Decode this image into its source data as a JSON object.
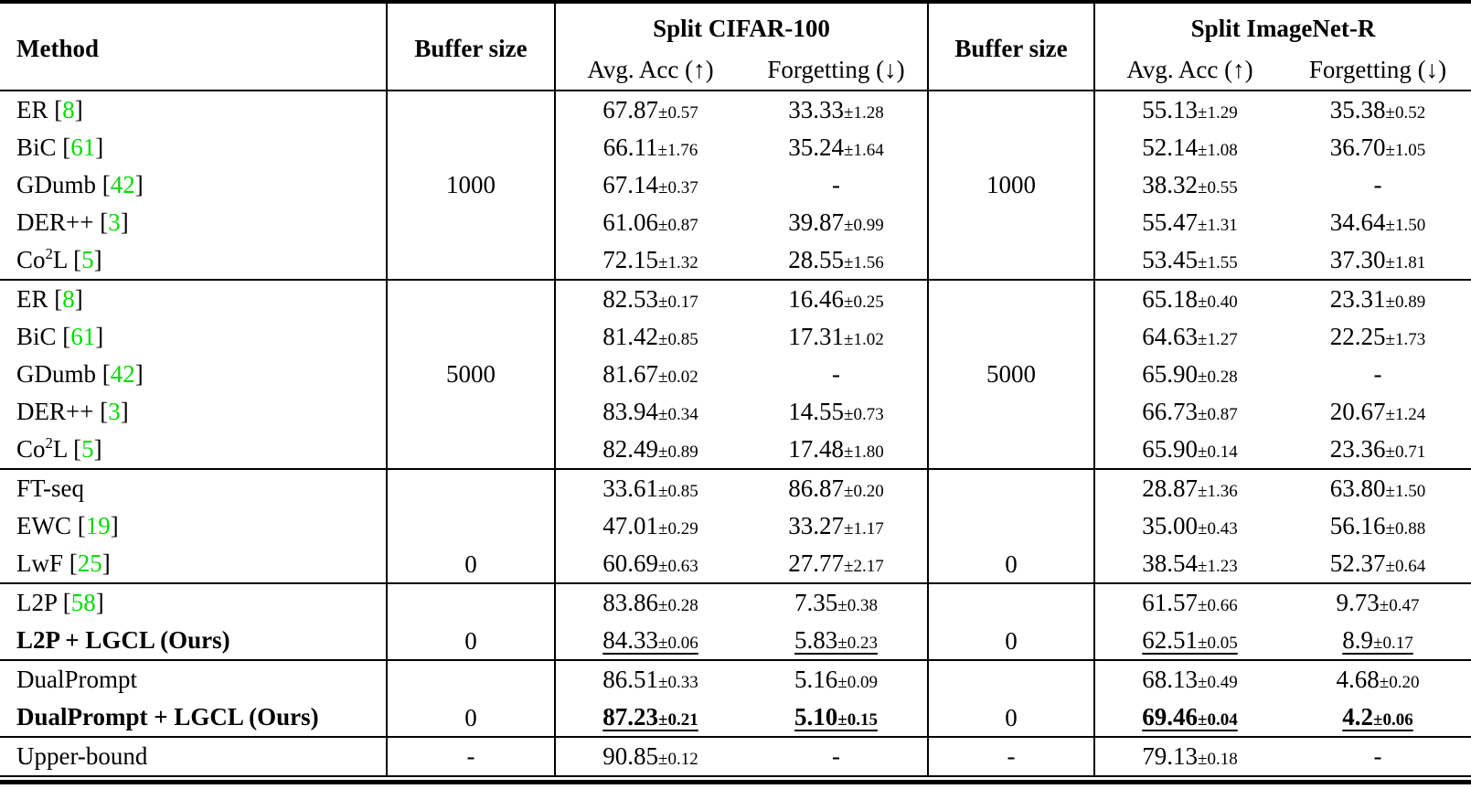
{
  "table": {
    "colors": {
      "citation_green": "#00DC00",
      "text": "#000000",
      "rule": "#000000"
    },
    "header": {
      "method": "Method",
      "buffer_size": "Buffer size",
      "buffer_size_2": "Buffer size",
      "split_cifar": "Split CIFAR-100",
      "split_imagenet": "Split ImageNet-R",
      "avg_acc": "Avg. Acc (↑)",
      "forgetting": "Forgetting (↓)"
    },
    "groups": [
      {
        "buffer": "1000",
        "buffer_align": "middle",
        "rows": [
          {
            "method": "ER",
            "sup": "",
            "tail": "",
            "cite": "8",
            "bold": false,
            "cell_style": "normal",
            "values": [
              {
                "v": "67.87",
                "pm": "0.57"
              },
              {
                "v": "33.33",
                "pm": "1.28"
              },
              {
                "v": "55.13",
                "pm": "1.29"
              },
              {
                "v": "35.38",
                "pm": "0.52"
              }
            ]
          },
          {
            "method": "BiC",
            "sup": "",
            "tail": "",
            "cite": "61",
            "bold": false,
            "cell_style": "normal",
            "values": [
              {
                "v": "66.11",
                "pm": "1.76"
              },
              {
                "v": "35.24",
                "pm": "1.64"
              },
              {
                "v": "52.14",
                "pm": "1.08"
              },
              {
                "v": "36.70",
                "pm": "1.05"
              }
            ]
          },
          {
            "method": "GDumb",
            "sup": "",
            "tail": "",
            "cite": "42",
            "bold": false,
            "cell_style": "normal",
            "values": [
              {
                "v": "67.14",
                "pm": "0.37"
              },
              {
                "v": "-",
                "pm": ""
              },
              {
                "v": "38.32",
                "pm": "0.55"
              },
              {
                "v": "-",
                "pm": ""
              }
            ]
          },
          {
            "method": "DER++",
            "sup": "",
            "tail": "",
            "cite": "3",
            "bold": false,
            "cell_style": "normal",
            "values": [
              {
                "v": "61.06",
                "pm": "0.87"
              },
              {
                "v": "39.87",
                "pm": "0.99"
              },
              {
                "v": "55.47",
                "pm": "1.31"
              },
              {
                "v": "34.64",
                "pm": "1.50"
              }
            ]
          },
          {
            "method": "Co",
            "sup": "2",
            "tail": "L",
            "cite": "5",
            "bold": false,
            "cell_style": "normal",
            "values": [
              {
                "v": "72.15",
                "pm": "1.32"
              },
              {
                "v": "28.55",
                "pm": "1.56"
              },
              {
                "v": "53.45",
                "pm": "1.55"
              },
              {
                "v": "37.30",
                "pm": "1.81"
              }
            ]
          }
        ]
      },
      {
        "buffer": "5000",
        "buffer_align": "middle",
        "rows": [
          {
            "method": "ER",
            "sup": "",
            "tail": "",
            "cite": "8",
            "bold": false,
            "cell_style": "normal",
            "values": [
              {
                "v": "82.53",
                "pm": "0.17"
              },
              {
                "v": "16.46",
                "pm": "0.25"
              },
              {
                "v": "65.18",
                "pm": "0.40"
              },
              {
                "v": "23.31",
                "pm": "0.89"
              }
            ]
          },
          {
            "method": "BiC",
            "sup": "",
            "tail": "",
            "cite": "61",
            "bold": false,
            "cell_style": "normal",
            "values": [
              {
                "v": "81.42",
                "pm": "0.85"
              },
              {
                "v": "17.31",
                "pm": "1.02"
              },
              {
                "v": "64.63",
                "pm": "1.27"
              },
              {
                "v": "22.25",
                "pm": "1.73"
              }
            ]
          },
          {
            "method": "GDumb",
            "sup": "",
            "tail": "",
            "cite": "42",
            "bold": false,
            "cell_style": "normal",
            "values": [
              {
                "v": "81.67",
                "pm": "0.02"
              },
              {
                "v": "-",
                "pm": ""
              },
              {
                "v": "65.90",
                "pm": "0.28"
              },
              {
                "v": "-",
                "pm": ""
              }
            ]
          },
          {
            "method": "DER++",
            "sup": "",
            "tail": "",
            "cite": "3",
            "bold": false,
            "cell_style": "normal",
            "values": [
              {
                "v": "83.94",
                "pm": "0.34"
              },
              {
                "v": "14.55",
                "pm": "0.73"
              },
              {
                "v": "66.73",
                "pm": "0.87"
              },
              {
                "v": "20.67",
                "pm": "1.24"
              }
            ]
          },
          {
            "method": "Co",
            "sup": "2",
            "tail": "L",
            "cite": "5",
            "bold": false,
            "cell_style": "normal",
            "values": [
              {
                "v": "82.49",
                "pm": "0.89"
              },
              {
                "v": "17.48",
                "pm": "1.80"
              },
              {
                "v": "65.90",
                "pm": "0.14"
              },
              {
                "v": "23.36",
                "pm": "0.71"
              }
            ]
          }
        ]
      },
      {
        "buffer": "0",
        "buffer_align": "bottom",
        "rows": [
          {
            "method": "FT-seq",
            "sup": "",
            "tail": "",
            "cite": "",
            "bold": false,
            "cell_style": "normal",
            "values": [
              {
                "v": "33.61",
                "pm": "0.85"
              },
              {
                "v": "86.87",
                "pm": "0.20"
              },
              {
                "v": "28.87",
                "pm": "1.36"
              },
              {
                "v": "63.80",
                "pm": "1.50"
              }
            ]
          },
          {
            "method": "EWC",
            "sup": "",
            "tail": "",
            "cite": "19",
            "bold": false,
            "cell_style": "normal",
            "values": [
              {
                "v": "47.01",
                "pm": "0.29"
              },
              {
                "v": "33.27",
                "pm": "1.17"
              },
              {
                "v": "35.00",
                "pm": "0.43"
              },
              {
                "v": "56.16",
                "pm": "0.88"
              }
            ]
          },
          {
            "method": "LwF",
            "sup": "",
            "tail": "",
            "cite": "25",
            "bold": false,
            "cell_style": "normal",
            "values": [
              {
                "v": "60.69",
                "pm": "0.63"
              },
              {
                "v": "27.77",
                "pm": "2.17"
              },
              {
                "v": "38.54",
                "pm": "1.23"
              },
              {
                "v": "52.37",
                "pm": "0.64"
              }
            ]
          }
        ]
      },
      {
        "buffer": "0",
        "buffer_align": "bottom",
        "rows": [
          {
            "method": "L2P",
            "sup": "",
            "tail": "",
            "cite": "58",
            "bold": false,
            "cell_style": "normal",
            "values": [
              {
                "v": "83.86",
                "pm": "0.28"
              },
              {
                "v": "7.35",
                "pm": "0.38"
              },
              {
                "v": "61.57",
                "pm": "0.66"
              },
              {
                "v": "9.73",
                "pm": "0.47"
              }
            ]
          },
          {
            "method": "L2P + LGCL (Ours)",
            "sup": "",
            "tail": "",
            "cite": "",
            "bold": true,
            "cell_style": "underline",
            "values": [
              {
                "v": "84.33",
                "pm": "0.06"
              },
              {
                "v": "5.83",
                "pm": "0.23"
              },
              {
                "v": "62.51",
                "pm": "0.05"
              },
              {
                "v": "8.9",
                "pm": "0.17"
              }
            ]
          }
        ]
      },
      {
        "buffer": "0",
        "buffer_align": "bottom",
        "rows": [
          {
            "method": "DualPrompt",
            "sup": "",
            "tail": "",
            "cite": "",
            "bold": false,
            "cell_style": "normal",
            "values": [
              {
                "v": "86.51",
                "pm": "0.33"
              },
              {
                "v": "5.16",
                "pm": "0.09"
              },
              {
                "v": "68.13",
                "pm": "0.49"
              },
              {
                "v": "4.68",
                "pm": "0.20"
              }
            ]
          },
          {
            "method": "DualPrompt + LGCL (Ours)",
            "sup": "",
            "tail": "",
            "cite": "",
            "bold": true,
            "cell_style": "bold-underline",
            "values": [
              {
                "v": "87.23",
                "pm": "0.21"
              },
              {
                "v": "5.10",
                "pm": "0.15"
              },
              {
                "v": "69.46",
                "pm": "0.04"
              },
              {
                "v": "4.2",
                "pm": "0.06"
              }
            ]
          }
        ]
      },
      {
        "buffer": "-",
        "buffer_align": "middle",
        "rows": [
          {
            "method": "Upper-bound",
            "sup": "",
            "tail": "",
            "cite": "",
            "bold": false,
            "cell_style": "normal",
            "values": [
              {
                "v": "90.85",
                "pm": "0.12"
              },
              {
                "v": "-",
                "pm": ""
              },
              {
                "v": "79.13",
                "pm": "0.18"
              },
              {
                "v": "-",
                "pm": ""
              }
            ]
          }
        ]
      }
    ]
  }
}
